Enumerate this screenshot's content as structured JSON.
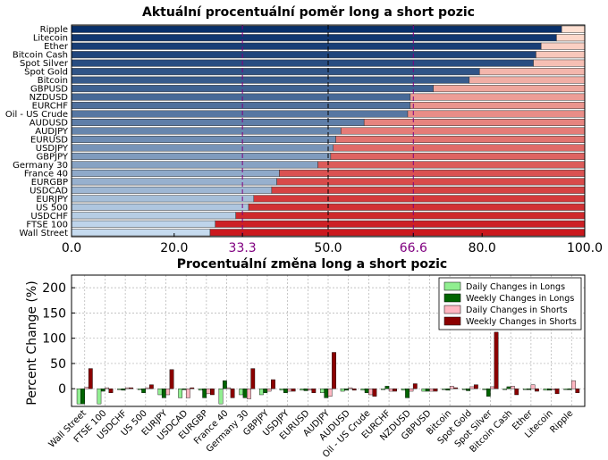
{
  "chart_data": [
    {
      "type": "bar",
      "orientation": "horizontal",
      "stacked": true,
      "title": "Aktuální procentuální poměr long a short pozic",
      "categories": [
        "Ripple",
        "Litecoin",
        "Ether",
        "Bitcoin Cash",
        "Spot Silver",
        "Spot Gold",
        "Bitcoin",
        "GBPUSD",
        "NZDUSD",
        "EURCHF",
        "Oil - US Crude",
        "AUDUSD",
        "AUDJPY",
        "EURUSD",
        "USDJPY",
        "GBPJPY",
        "Germany 30",
        "France 40",
        "EURGBP",
        "USDCAD",
        "EURJPY",
        "US 500",
        "USDCHF",
        "FTSE 100",
        "Wall Street"
      ],
      "series": [
        {
          "values": [
            95.5,
            94.5,
            91.5,
            90.5,
            90.0,
            79.5,
            77.5,
            70.5,
            66.0,
            66.0,
            65.5,
            57.0,
            52.5,
            51.5,
            51.0,
            50.5,
            48.0,
            40.5,
            40.0,
            39.0,
            35.5,
            34.5,
            32.0,
            28.0,
            27.0
          ]
        },
        {
          "values": [
            4.5,
            5.5,
            8.5,
            9.5,
            10.0,
            20.5,
            22.5,
            29.5,
            34.0,
            34.0,
            34.5,
            43.0,
            47.5,
            48.5,
            49.0,
            49.5,
            52.0,
            59.5,
            60.0,
            61.0,
            64.5,
            65.5,
            68.0,
            72.0,
            73.0
          ]
        }
      ],
      "xlim": [
        0,
        100
      ],
      "xticks": [
        "0.0",
        "20.0",
        "33.3",
        "50.0",
        "66.6",
        "80.0",
        "100.0"
      ],
      "reference_lines": [
        33.3,
        50.0,
        66.6
      ],
      "colors": {
        "long_dark": "#08306b",
        "long_light": "#c6dbef",
        "short_light": "#fee0d2",
        "short_dark": "#cb181d",
        "ref_line": "#800080"
      }
    },
    {
      "type": "bar",
      "title": "Procentuální změna long a short pozic",
      "ylabel": "Percent Change (%)",
      "ylim": [
        -35,
        225
      ],
      "yticks": [
        "0",
        "50",
        "100",
        "150",
        "200"
      ],
      "grid": true,
      "legend_position": "top-right",
      "categories": [
        "Wall Street",
        "FTSE 100",
        "USDCHF",
        "US 500",
        "EURJPY",
        "USDCAD",
        "EURGBP",
        "France 40",
        "Germany 30",
        "GBPJPY",
        "USDJPY",
        "EURUSD",
        "AUDJPY",
        "AUDUSD",
        "Oil - US Crude",
        "EURCHF",
        "NZDUSD",
        "GBPUSD",
        "Bitcoin",
        "Spot Gold",
        "Spot Silver",
        "Bitcoin Cash",
        "Ether",
        "Litecoin",
        "Ripple"
      ],
      "series": [
        {
          "name": "Daily Changes in Longs",
          "color": "#90ee90",
          "values": [
            -30,
            -30,
            -2,
            -2,
            -12,
            -18,
            -3,
            -30,
            -12,
            -12,
            -3,
            -3,
            -8,
            -5,
            -3,
            -2,
            -3,
            -5,
            -2,
            -2,
            -2,
            -2,
            -2,
            -3,
            -2
          ]
        },
        {
          "name": "Weekly Changes in Longs",
          "color": "#006400",
          "values": [
            -30,
            -5,
            -3,
            -8,
            -18,
            -2,
            -18,
            16,
            -18,
            -8,
            -8,
            -4,
            -18,
            -3,
            -8,
            5,
            -18,
            -5,
            -3,
            -4,
            -15,
            4,
            -2,
            -3,
            -2
          ]
        },
        {
          "name": "Daily Changes in Shorts",
          "color": "#ffb6c1",
          "values": [
            3,
            2,
            2,
            2,
            -12,
            -18,
            -10,
            2,
            -20,
            -5,
            -5,
            -3,
            -15,
            2,
            -12,
            -5,
            -5,
            -5,
            5,
            4,
            4,
            5,
            8,
            -2,
            16
          ]
        },
        {
          "name": "Weekly Changes in Shorts",
          "color": "#8b0000",
          "values": [
            40,
            -8,
            2,
            8,
            38,
            2,
            -12,
            -18,
            40,
            18,
            -5,
            -8,
            72,
            -3,
            -15,
            -5,
            10,
            -5,
            2,
            8,
            112,
            -12,
            -5,
            -10,
            -8
          ]
        }
      ]
    }
  ]
}
